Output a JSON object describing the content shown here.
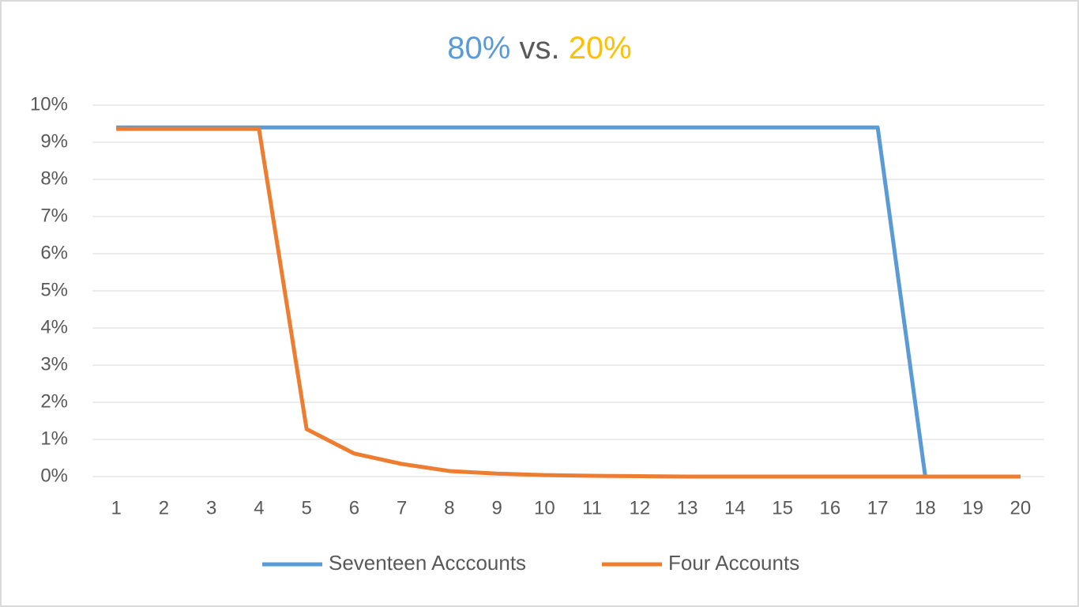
{
  "chart_data": {
    "type": "line",
    "title_parts": [
      {
        "text": "80%",
        "color": "#5b9bd5"
      },
      {
        "text": "vs.",
        "color": "#595959"
      },
      {
        "text": "20%",
        "color": "#ffc000"
      }
    ],
    "categories": [
      "1",
      "2",
      "3",
      "4",
      "5",
      "6",
      "7",
      "8",
      "9",
      "10",
      "11",
      "12",
      "13",
      "14",
      "15",
      "16",
      "17",
      "18",
      "19",
      "20"
    ],
    "series": [
      {
        "name": "Seventeen Acccounts",
        "color": "#5b9bd5",
        "values": [
          9.4,
          9.4,
          9.4,
          9.4,
          9.4,
          9.4,
          9.4,
          9.4,
          9.4,
          9.4,
          9.4,
          9.4,
          9.4,
          9.4,
          9.4,
          9.4,
          9.4,
          0,
          0,
          0
        ]
      },
      {
        "name": "Four Accounts",
        "color": "#ed7d31",
        "values": [
          9.36,
          9.36,
          9.36,
          9.36,
          1.28,
          0.62,
          0.34,
          0.15,
          0.08,
          0.04,
          0.02,
          0.01,
          0,
          0,
          0,
          0,
          0,
          0,
          0,
          0
        ]
      }
    ],
    "ylim": [
      0,
      10
    ],
    "yticks": [
      {
        "value": 0,
        "label": "0%"
      },
      {
        "value": 1,
        "label": "1%"
      },
      {
        "value": 2,
        "label": "2%"
      },
      {
        "value": 3,
        "label": "3%"
      },
      {
        "value": 4,
        "label": "4%"
      },
      {
        "value": 5,
        "label": "5%"
      },
      {
        "value": 6,
        "label": "6%"
      },
      {
        "value": 7,
        "label": "7%"
      },
      {
        "value": 8,
        "label": "8%"
      },
      {
        "value": 9,
        "label": "9%"
      },
      {
        "value": 10,
        "label": "10%"
      }
    ],
    "grid": true,
    "legend": "bottom"
  }
}
